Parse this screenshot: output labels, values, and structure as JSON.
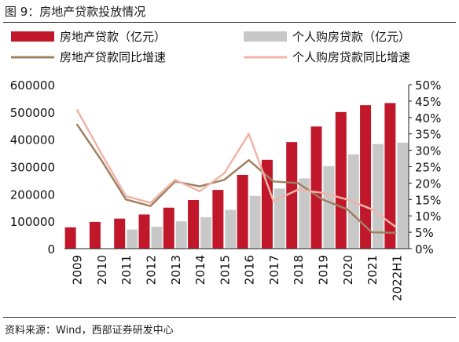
{
  "title": "图 9：房地产贷款投放情况",
  "source": "资料来源：Wind，西部证券研发中心",
  "chart_data": {
    "type": "bar",
    "categories": [
      "2009",
      "2010",
      "2011",
      "2012",
      "2013",
      "2014",
      "2015",
      "2016",
      "2017",
      "2018",
      "2019",
      "2020",
      "2021",
      "2022H1"
    ],
    "series": [
      {
        "name": "房地产贷款（亿元）",
        "kind": "bar",
        "axis": "left",
        "color": "#c0182a",
        "values": [
          78000,
          98000,
          110000,
          125000,
          150000,
          178000,
          215000,
          270000,
          325000,
          390000,
          447000,
          500000,
          525000,
          533000
        ]
      },
      {
        "name": "个人购房贷款（亿元）",
        "kind": "bar",
        "axis": "left",
        "color": "#c8c8c8",
        "values": [
          null,
          null,
          70000,
          80000,
          100000,
          115000,
          142000,
          193000,
          220000,
          257000,
          302000,
          345000,
          383000,
          388000
        ]
      },
      {
        "name": "房地产贷款同比增速",
        "kind": "line",
        "axis": "right",
        "color": "#a08060",
        "values": [
          38,
          27,
          15,
          13,
          20.5,
          19,
          21,
          27,
          20.5,
          20,
          15,
          12,
          5,
          4.8
        ]
      },
      {
        "name": "个人购房贷款同比增速",
        "kind": "line",
        "axis": "right",
        "color": "#f0b4a8",
        "values": [
          42.5,
          29,
          16,
          14,
          21,
          17.5,
          23,
          35,
          14.5,
          18,
          17,
          15,
          12,
          6.5
        ]
      }
    ],
    "left_axis": {
      "min": 0,
      "max": 600000,
      "ticks": [
        0,
        100000,
        200000,
        300000,
        400000,
        500000,
        600000
      ]
    },
    "right_axis": {
      "min": 0,
      "max": 50,
      "ticks": [
        "0%",
        "5%",
        "10%",
        "15%",
        "20%",
        "25%",
        "30%",
        "35%",
        "40%",
        "45%",
        "50%"
      ]
    },
    "legend": "top"
  }
}
